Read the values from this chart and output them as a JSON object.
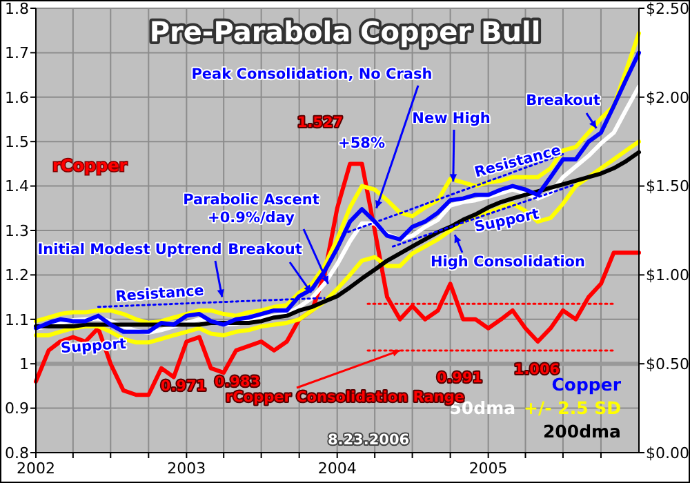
{
  "chart_data": {
    "type": "line",
    "title": "Pre-Parabola Copper Bull",
    "x": [
      "2002-01-01",
      "2002-02-01",
      "2002-03-01",
      "2002-04-01",
      "2002-05-01",
      "2002-06-01",
      "2002-07-01",
      "2002-08-01",
      "2002-09-01",
      "2002-10-01",
      "2002-11-01",
      "2002-12-01",
      "2003-01-01",
      "2003-02-01",
      "2003-03-01",
      "2003-04-01",
      "2003-05-01",
      "2003-06-01",
      "2003-07-01",
      "2003-08-01",
      "2003-09-01",
      "2003-10-01",
      "2003-11-01",
      "2003-12-01",
      "2004-01-01",
      "2004-02-01",
      "2004-03-01",
      "2004-04-01",
      "2004-05-01",
      "2004-06-01",
      "2004-07-01",
      "2004-08-01",
      "2004-09-01",
      "2004-10-01",
      "2004-11-01",
      "2004-12-01",
      "2005-01-01",
      "2005-02-01",
      "2005-03-01",
      "2005-04-01",
      "2005-05-01",
      "2005-06-01",
      "2005-07-01",
      "2005-08-01",
      "2005-09-01",
      "2005-10-01",
      "2005-11-01",
      "2005-12-01",
      "2006-01-01"
    ],
    "series": [
      {
        "name": "rCopper",
        "color": "#ff0000",
        "axis": "y",
        "values": [
          0.96,
          1.03,
          1.05,
          1.06,
          1.05,
          1.08,
          1.0,
          0.94,
          0.93,
          0.93,
          0.99,
          0.97,
          1.05,
          1.06,
          0.99,
          0.98,
          1.03,
          1.04,
          1.05,
          1.03,
          1.05,
          1.1,
          1.12,
          1.2,
          1.35,
          1.45,
          1.45,
          1.3,
          1.15,
          1.1,
          1.13,
          1.1,
          1.12,
          1.18,
          1.1,
          1.1,
          1.08,
          1.1,
          1.12,
          1.08,
          1.05,
          1.08,
          1.12,
          1.1,
          1.15,
          1.18,
          1.25,
          1.25,
          1.25
        ]
      },
      {
        "name": "+/- 2.5 SD",
        "color": "#ffff00",
        "axis": "y2",
        "values": [
          0.74,
          0.76,
          0.78,
          0.79,
          0.79,
          0.8,
          0.8,
          0.78,
          0.75,
          0.73,
          0.74,
          0.76,
          0.78,
          0.8,
          0.8,
          0.78,
          0.77,
          0.79,
          0.8,
          0.82,
          0.83,
          0.9,
          0.95,
          1.05,
          1.2,
          1.38,
          1.5,
          1.48,
          1.42,
          1.35,
          1.33,
          1.38,
          1.42,
          1.54,
          1.52,
          1.5,
          1.52,
          1.53,
          1.55,
          1.55,
          1.55,
          1.6,
          1.7,
          1.72,
          1.8,
          1.88,
          1.95,
          2.15,
          2.36
        ]
      },
      {
        "color": "#ffff00",
        "axis": "y2",
        "values": [
          0.66,
          0.66,
          0.68,
          0.7,
          0.71,
          0.71,
          0.68,
          0.64,
          0.62,
          0.62,
          0.64,
          0.66,
          0.68,
          0.7,
          0.67,
          0.66,
          0.68,
          0.69,
          0.71,
          0.72,
          0.73,
          0.75,
          0.8,
          0.85,
          0.92,
          1.0,
          1.08,
          1.1,
          1.05,
          1.05,
          1.12,
          1.16,
          1.2,
          1.25,
          1.3,
          1.33,
          1.35,
          1.38,
          1.4,
          1.36,
          1.3,
          1.32,
          1.4,
          1.5,
          1.55,
          1.6,
          1.65,
          1.7,
          1.75
        ]
      },
      {
        "name": "50dma",
        "color": "#ffffff",
        "axis": "y2",
        "values": [
          0.7,
          0.71,
          0.73,
          0.745,
          0.75,
          0.755,
          0.74,
          0.71,
          0.685,
          0.675,
          0.69,
          0.71,
          0.73,
          0.75,
          0.74,
          0.72,
          0.725,
          0.74,
          0.755,
          0.77,
          0.78,
          0.82,
          0.87,
          0.95,
          1.06,
          1.19,
          1.29,
          1.29,
          1.23,
          1.2,
          1.22,
          1.27,
          1.31,
          1.39,
          1.41,
          1.42,
          1.44,
          1.46,
          1.48,
          1.46,
          1.43,
          1.46,
          1.55,
          1.61,
          1.67,
          1.74,
          1.8,
          1.93,
          2.06
        ]
      },
      {
        "name": "200dma",
        "color": "#000000",
        "axis": "y2",
        "values": [
          0.71,
          0.71,
          0.71,
          0.71,
          0.72,
          0.72,
          0.72,
          0.72,
          0.72,
          0.72,
          0.72,
          0.72,
          0.72,
          0.72,
          0.73,
          0.73,
          0.73,
          0.73,
          0.74,
          0.76,
          0.77,
          0.8,
          0.82,
          0.85,
          0.88,
          0.93,
          0.98,
          1.03,
          1.08,
          1.12,
          1.16,
          1.2,
          1.24,
          1.27,
          1.31,
          1.34,
          1.38,
          1.41,
          1.43,
          1.45,
          1.47,
          1.49,
          1.51,
          1.53,
          1.55,
          1.57,
          1.6,
          1.64,
          1.69
        ]
      },
      {
        "name": "Copper",
        "color": "#0000ff",
        "axis": "y2",
        "values": [
          0.7,
          0.73,
          0.75,
          0.74,
          0.74,
          0.77,
          0.72,
          0.68,
          0.68,
          0.68,
          0.73,
          0.72,
          0.77,
          0.78,
          0.74,
          0.72,
          0.75,
          0.76,
          0.78,
          0.8,
          0.8,
          0.88,
          0.92,
          1.02,
          1.15,
          1.3,
          1.37,
          1.3,
          1.22,
          1.2,
          1.27,
          1.3,
          1.35,
          1.42,
          1.43,
          1.45,
          1.45,
          1.48,
          1.5,
          1.48,
          1.45,
          1.55,
          1.65,
          1.65,
          1.75,
          1.8,
          1.95,
          2.1,
          2.25
        ]
      },
      {
        "color": "#ff0000",
        "axis": "y",
        "line_style": "dotted",
        "x": [
          "2004-03-15",
          "2005-11-01"
        ],
        "values": [
          1.135,
          1.135
        ]
      },
      {
        "color": "#ff0000",
        "axis": "y",
        "line_style": "dotted",
        "x": [
          "2004-03-15",
          "2005-11-01"
        ],
        "values": [
          1.03,
          1.03
        ]
      },
      {
        "color": "#0000ff",
        "axis": "y2",
        "line_style": "dotted",
        "x": [
          "2002-06-01",
          "2003-12-01"
        ],
        "values": [
          0.82,
          0.87
        ]
      },
      {
        "color": "#0000ff",
        "axis": "y2",
        "line_style": "dotted",
        "x": [
          "2004-01-15",
          "2005-07-01"
        ],
        "values": [
          1.23,
          1.68
        ]
      },
      {
        "color": "#0000ff",
        "axis": "y2",
        "line_style": "dotted",
        "x": [
          "2004-05-15",
          "2005-08-01"
        ],
        "values": [
          1.16,
          1.51
        ]
      }
    ],
    "xlim": [
      "2002-01-01",
      "2006-01-01"
    ],
    "xticks": [
      {
        "value": "2002-01-01",
        "label": "2002"
      },
      {
        "value": "2002-04-01",
        "label": null
      },
      {
        "value": "2002-07-01",
        "label": null
      },
      {
        "value": "2002-10-01",
        "label": null
      },
      {
        "value": "2003-01-01",
        "label": "2003"
      },
      {
        "value": "2003-04-01",
        "label": null
      },
      {
        "value": "2003-07-01",
        "label": null
      },
      {
        "value": "2003-10-01",
        "label": null
      },
      {
        "value": "2004-01-01",
        "label": "2004"
      },
      {
        "value": "2004-04-01",
        "label": null
      },
      {
        "value": "2004-07-01",
        "label": null
      },
      {
        "value": "2004-10-01",
        "label": null
      },
      {
        "value": "2005-01-01",
        "label": "2005"
      },
      {
        "value": "2005-04-01",
        "label": null
      },
      {
        "value": "2005-07-01",
        "label": null
      },
      {
        "value": "2005-10-01",
        "label": null
      }
    ],
    "ylim": [
      0.8,
      1.8
    ],
    "yticks": [
      0.8,
      0.9,
      1.0,
      1.1,
      1.2,
      1.3,
      1.4,
      1.5,
      1.6,
      1.7,
      1.8
    ],
    "y2lim": [
      0,
      2.5
    ],
    "y2ticks": [
      {
        "value": 0,
        "label": "$0.00"
      },
      {
        "value": 0.5,
        "label": "$0.50"
      },
      {
        "value": 1,
        "label": "$1.00"
      },
      {
        "value": 1.5,
        "label": "$1.50"
      },
      {
        "value": 2,
        "label": "$2.00"
      },
      {
        "value": 2.5,
        "label": "$2.50"
      }
    ],
    "ref_lines": [
      {
        "axis": "y",
        "value": 1.0,
        "color": "#999999"
      }
    ],
    "grid": true,
    "legend": "bottom right",
    "annotations": [
      "1.527",
      "+58%",
      {
        "text": "Peak Consolidation, No Crash",
        "x": "2004-04-05",
        "y": 1.35
      },
      {
        "text": "New High",
        "x": "2004-10-08",
        "y": 1.41
      },
      {
        "text": "Breakout",
        "x": "2005-09-20",
        "y": 1.53
      },
      "Resistance",
      "Support",
      {
        "text": "Parabolic Ascent\n+0.9%/day",
        "x": "2003-12-10",
        "y": 1.18
      },
      {
        "text": "Initial Modest Uptrend",
        "x": "2003-03-28",
        "y": 1.15
      },
      {
        "text": "Breakout",
        "x": "2003-10-30",
        "y": 1.16
      },
      "Resistance",
      "Support",
      {
        "text": "High Consolidation",
        "x": "2004-10-12",
        "y": 1.29
      },
      {
        "text": "rCopper Consolidation Range",
        "x": "2004-06-01",
        "y": 1.03
      },
      "0.971",
      "0.983",
      "0.991",
      "1.006",
      "8.23.2006"
    ]
  }
}
